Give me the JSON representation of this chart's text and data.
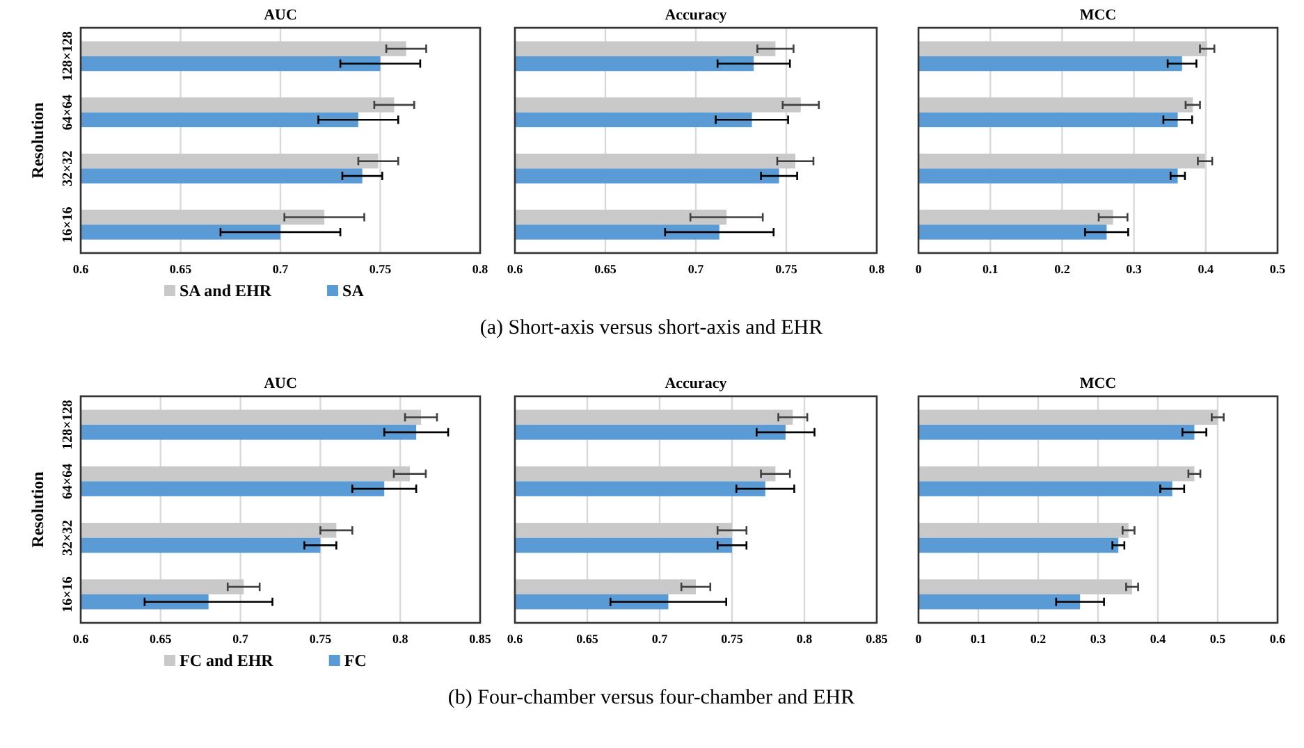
{
  "chart_data": [
    {
      "type": "bar",
      "orientation": "horizontal",
      "title": "AUC",
      "ylabel": "Resolution",
      "categories": [
        "128×128",
        "64×64",
        "32×32",
        "16×16"
      ],
      "xlim": [
        0.6,
        0.8
      ],
      "xticks": [
        0.6,
        0.65,
        0.7,
        0.75,
        0.8
      ],
      "grid": "x",
      "legend": "bottom",
      "series": [
        {
          "name": "SA and EHR",
          "color": "#c9c9c9",
          "values": [
            0.763,
            0.757,
            0.749,
            0.722
          ],
          "errors": [
            0.01,
            0.01,
            0.01,
            0.02
          ]
        },
        {
          "name": "SA",
          "color": "#5b9bd5",
          "values": [
            0.75,
            0.739,
            0.741,
            0.7
          ],
          "errors": [
            0.02,
            0.02,
            0.01,
            0.03
          ]
        }
      ]
    },
    {
      "type": "bar",
      "orientation": "horizontal",
      "title": "Accuracy",
      "categories": [
        null,
        null,
        null,
        null
      ],
      "tick_labels": "x",
      "xlim": [
        0.6,
        0.8
      ],
      "xticks": [
        0.6,
        0.65,
        0.7,
        0.75,
        0.8
      ],
      "grid": "x",
      "annotations": [
        "(a) Short-axis versus short-axis and EHR"
      ],
      "series": [
        {
          "color": "#c9c9c9",
          "values": [
            0.744,
            0.758,
            0.755,
            0.717
          ],
          "errors": [
            0.01,
            0.01,
            0.01,
            0.02
          ]
        },
        {
          "color": "#5b9bd5",
          "values": [
            0.732,
            0.731,
            0.746,
            0.713
          ],
          "errors": [
            0.02,
            0.02,
            0.01,
            0.03
          ]
        }
      ]
    },
    {
      "type": "bar",
      "orientation": "horizontal",
      "title": "MCC",
      "categories": [
        null,
        null,
        null,
        null
      ],
      "tick_labels": "x",
      "xlim": [
        0,
        0.5
      ],
      "xticks": [
        0,
        0.1,
        0.2,
        0.3,
        0.4,
        0.5
      ],
      "grid": "x",
      "series": [
        {
          "color": "#c9c9c9",
          "values": [
            0.402,
            0.382,
            0.399,
            0.271
          ],
          "errors": [
            0.01,
            0.01,
            0.01,
            0.02
          ]
        },
        {
          "color": "#5b9bd5",
          "values": [
            0.367,
            0.361,
            0.361,
            0.262
          ],
          "errors": [
            0.02,
            0.02,
            0.01,
            0.03
          ]
        }
      ]
    },
    {
      "type": "bar",
      "orientation": "horizontal",
      "title": "AUC",
      "ylabel": "Resolution",
      "categories": [
        "128×128",
        "64×64",
        "32×32",
        "16×16"
      ],
      "xlim": [
        0.6,
        0.85
      ],
      "xticks": [
        0.6,
        0.65,
        0.7,
        0.75,
        0.8,
        0.85
      ],
      "grid": "x",
      "legend": "bottom",
      "series": [
        {
          "name": "FC and EHR",
          "color": "#c9c9c9",
          "values": [
            0.813,
            0.806,
            0.76,
            0.702
          ],
          "errors": [
            0.01,
            0.01,
            0.01,
            0.01
          ]
        },
        {
          "name": "FC",
          "color": "#5b9bd5",
          "values": [
            0.81,
            0.79,
            0.75,
            0.68
          ],
          "errors": [
            0.02,
            0.02,
            0.01,
            0.04
          ]
        }
      ]
    },
    {
      "type": "bar",
      "orientation": "horizontal",
      "title": "Accuracy",
      "categories": [
        null,
        null,
        null,
        null
      ],
      "tick_labels": "x",
      "xlim": [
        0.6,
        0.85
      ],
      "xticks": [
        0.6,
        0.65,
        0.7,
        0.75,
        0.8,
        0.85
      ],
      "grid": "x",
      "annotations": [
        "(b) Four-chamber versus four-chamber and EHR"
      ],
      "series": [
        {
          "color": "#c9c9c9",
          "values": [
            0.792,
            0.78,
            0.75,
            0.725
          ],
          "errors": [
            0.01,
            0.01,
            0.01,
            0.01
          ]
        },
        {
          "color": "#5b9bd5",
          "values": [
            0.787,
            0.773,
            0.75,
            0.706
          ],
          "errors": [
            0.02,
            0.02,
            0.01,
            0.04
          ]
        }
      ]
    },
    {
      "type": "bar",
      "orientation": "horizontal",
      "title": "MCC",
      "categories": [
        null,
        null,
        null,
        null
      ],
      "tick_labels": "x",
      "xlim": [
        0,
        0.6
      ],
      "xticks": [
        0,
        0.1,
        0.2,
        0.3,
        0.4,
        0.5,
        0.6
      ],
      "grid": "x",
      "series": [
        {
          "color": "#c9c9c9",
          "values": [
            0.5,
            0.461,
            0.351,
            0.357
          ],
          "errors": [
            0.01,
            0.01,
            0.01,
            0.01
          ]
        },
        {
          "color": "#5b9bd5",
          "values": [
            0.461,
            0.424,
            0.334,
            0.27
          ],
          "errors": [
            0.02,
            0.02,
            0.01,
            0.04
          ]
        }
      ]
    }
  ]
}
